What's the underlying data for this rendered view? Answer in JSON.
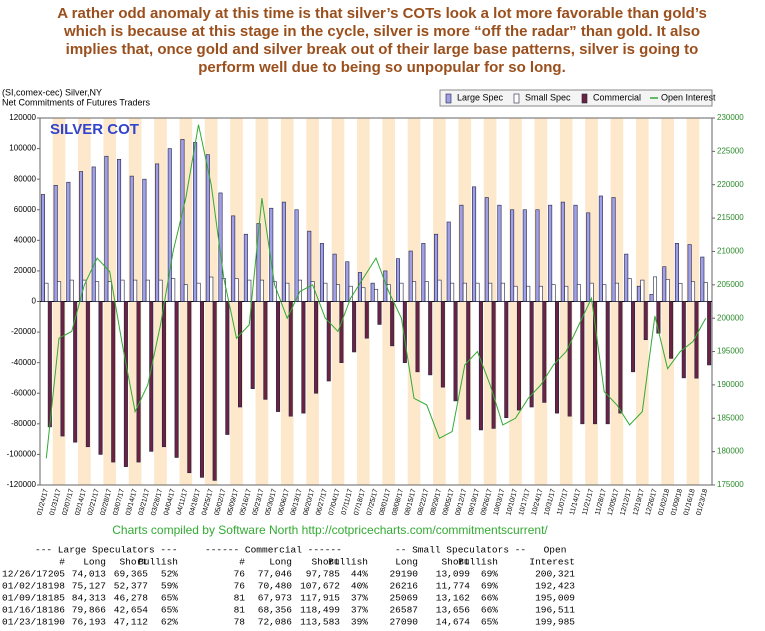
{
  "headline": [
    "A rather odd anomaly at this time is that silver’s COTs look a lot more favorable than gold’s",
    "which is because at this stage in the cycle, silver is more “off the radar” than gold. It also",
    "implies that, once gold and silver break out of their large base patterns, silver is going to",
    "perform well due to being so unpopular for so long."
  ],
  "chart_data": {
    "type": "bar",
    "symbol": "(SI,comex-cec) Silver,NY",
    "subtitle": "Net Commitments of Futures Traders",
    "title": "SILVER COT",
    "annotation": "Charts compiled by Software North  http://cotpricecharts.com/commitmentscurrent/",
    "categories": [
      "01/24/17",
      "01/31/17",
      "02/07/17",
      "02/14/17",
      "02/21/17",
      "02/28/17",
      "03/07/17",
      "03/14/17",
      "03/21/17",
      "03/28/17",
      "04/04/17",
      "04/11/17",
      "04/18/17",
      "04/25/17",
      "05/02/17",
      "05/09/17",
      "05/16/17",
      "05/23/17",
      "05/30/17",
      "06/06/17",
      "06/13/17",
      "06/20/17",
      "06/27/17",
      "07/04/17",
      "07/11/17",
      "07/18/17",
      "07/25/17",
      "08/01/17",
      "08/08/17",
      "08/15/17",
      "08/22/17",
      "08/29/17",
      "09/05/17",
      "09/12/17",
      "09/19/17",
      "09/26/17",
      "10/03/17",
      "10/10/17",
      "10/17/17",
      "10/24/17",
      "10/31/17",
      "11/07/17",
      "11/14/17",
      "11/21/17",
      "11/28/17",
      "12/05/17",
      "12/12/17",
      "12/19/17",
      "12/26/17",
      "01/02/18",
      "01/09/18",
      "01/16/18",
      "01/23/18"
    ],
    "series": [
      {
        "name": "Large Spec",
        "color": "#9f9fe8",
        "values": [
          70000,
          76000,
          78000,
          85000,
          88000,
          95000,
          93000,
          82000,
          80000,
          90000,
          100000,
          106000,
          104000,
          96000,
          71000,
          56000,
          44000,
          51000,
          61000,
          65000,
          60000,
          46000,
          38000,
          31000,
          26000,
          19000,
          12000,
          20000,
          28000,
          33000,
          38000,
          44000,
          52000,
          63000,
          75000,
          68000,
          63000,
          60000,
          60000,
          60000,
          63000,
          65000,
          63000,
          58000,
          69000,
          68000,
          31000,
          10000,
          4648,
          22750,
          38035,
          37212,
          29081
        ]
      },
      {
        "name": "Small Spec",
        "color": "#ffffff",
        "values": [
          12000,
          13000,
          14000,
          14000,
          13000,
          13000,
          14000,
          14000,
          14000,
          14000,
          15000,
          11000,
          12000,
          16000,
          15000,
          15000,
          14000,
          14000,
          13000,
          12000,
          14000,
          13000,
          12000,
          11000,
          10000,
          9000,
          8000,
          11000,
          12000,
          13000,
          13000,
          14000,
          12000,
          12000,
          12000,
          12000,
          12000,
          10000,
          10000,
          10000,
          11000,
          10000,
          11000,
          12000,
          11000,
          12000,
          15000,
          14000,
          16091,
          14442,
          11907,
          12931,
          12416
        ]
      },
      {
        "name": "Commercial",
        "color": "#6b2341",
        "values": [
          -82000,
          -88000,
          -92000,
          -95000,
          -100000,
          -105000,
          -108000,
          -105000,
          -98000,
          -95000,
          -102000,
          -112000,
          -115000,
          -117000,
          -87000,
          -69000,
          -57000,
          -64000,
          -72000,
          -75000,
          -73000,
          -60000,
          -52000,
          -40000,
          -33000,
          -24000,
          -15000,
          -29000,
          -40000,
          -46000,
          -48000,
          -56000,
          -65000,
          -77000,
          -84000,
          -83000,
          -76000,
          -71000,
          -69000,
          -66000,
          -73000,
          -75000,
          -80000,
          -80000,
          -80000,
          -73000,
          -46000,
          -25000,
          -20739,
          -37192,
          -49942,
          -50143,
          -41497
        ]
      },
      {
        "name": "Open Interest",
        "color": "#33aa33",
        "axis": "y2",
        "values": [
          179000,
          197000,
          198000,
          205000,
          209000,
          207000,
          196000,
          186000,
          190000,
          199000,
          210000,
          218000,
          229000,
          220000,
          206000,
          197000,
          199000,
          218000,
          205000,
          200000,
          204000,
          205000,
          200000,
          198000,
          203000,
          206000,
          209000,
          204000,
          200000,
          188000,
          187000,
          182000,
          183000,
          193000,
          195000,
          190000,
          184000,
          185000,
          188000,
          190000,
          193000,
          195000,
          199000,
          203000,
          189000,
          187000,
          184000,
          186000,
          200321,
          192423,
          195009,
          196511,
          199985
        ]
      }
    ],
    "ylim": [
      -120000,
      120000
    ],
    "yticks": [
      -120000,
      -100000,
      -80000,
      -60000,
      -40000,
      -20000,
      0,
      20000,
      40000,
      60000,
      80000,
      100000,
      120000
    ],
    "y2lim": [
      175000,
      230000
    ],
    "y2ticks": [
      175000,
      180000,
      185000,
      190000,
      195000,
      200000,
      205000,
      210000,
      215000,
      220000,
      225000,
      230000
    ],
    "legend": "top-right"
  },
  "table": {
    "group_headers": [
      "--- Large Speculators ---",
      "------ Commercial ------",
      "-- Small Speculators --",
      "Open"
    ],
    "columns": [
      "#",
      "Long",
      "Short",
      "Bullish",
      "#",
      "Long",
      "Short",
      "Bullish",
      "Long",
      "Short",
      "Bullish",
      "Interest"
    ],
    "rows": [
      [
        "12/26/17",
        "205",
        "74,013",
        "69,365",
        "52%",
        "76",
        "77,046",
        "97,785",
        "44%",
        "29190",
        "13,099",
        "69%",
        "200,321"
      ],
      [
        "01/02/18",
        "198",
        "75,127",
        "52,377",
        "59%",
        "76",
        "70,480",
        "107,672",
        "40%",
        "26216",
        "11,774",
        "69%",
        "192,423"
      ],
      [
        "01/09/18",
        "185",
        "84,313",
        "46,278",
        "65%",
        "81",
        "67,973",
        "117,915",
        "37%",
        "25069",
        "13,162",
        "66%",
        "195,009"
      ],
      [
        "01/16/18",
        "186",
        "79,866",
        "42,654",
        "65%",
        "81",
        "68,356",
        "118,499",
        "37%",
        "26587",
        "13,656",
        "66%",
        "196,511"
      ],
      [
        "01/23/18",
        "190",
        "76,193",
        "47,112",
        "62%",
        "78",
        "72,086",
        "113,583",
        "39%",
        "27090",
        "14,674",
        "65%",
        "199,985"
      ]
    ]
  }
}
